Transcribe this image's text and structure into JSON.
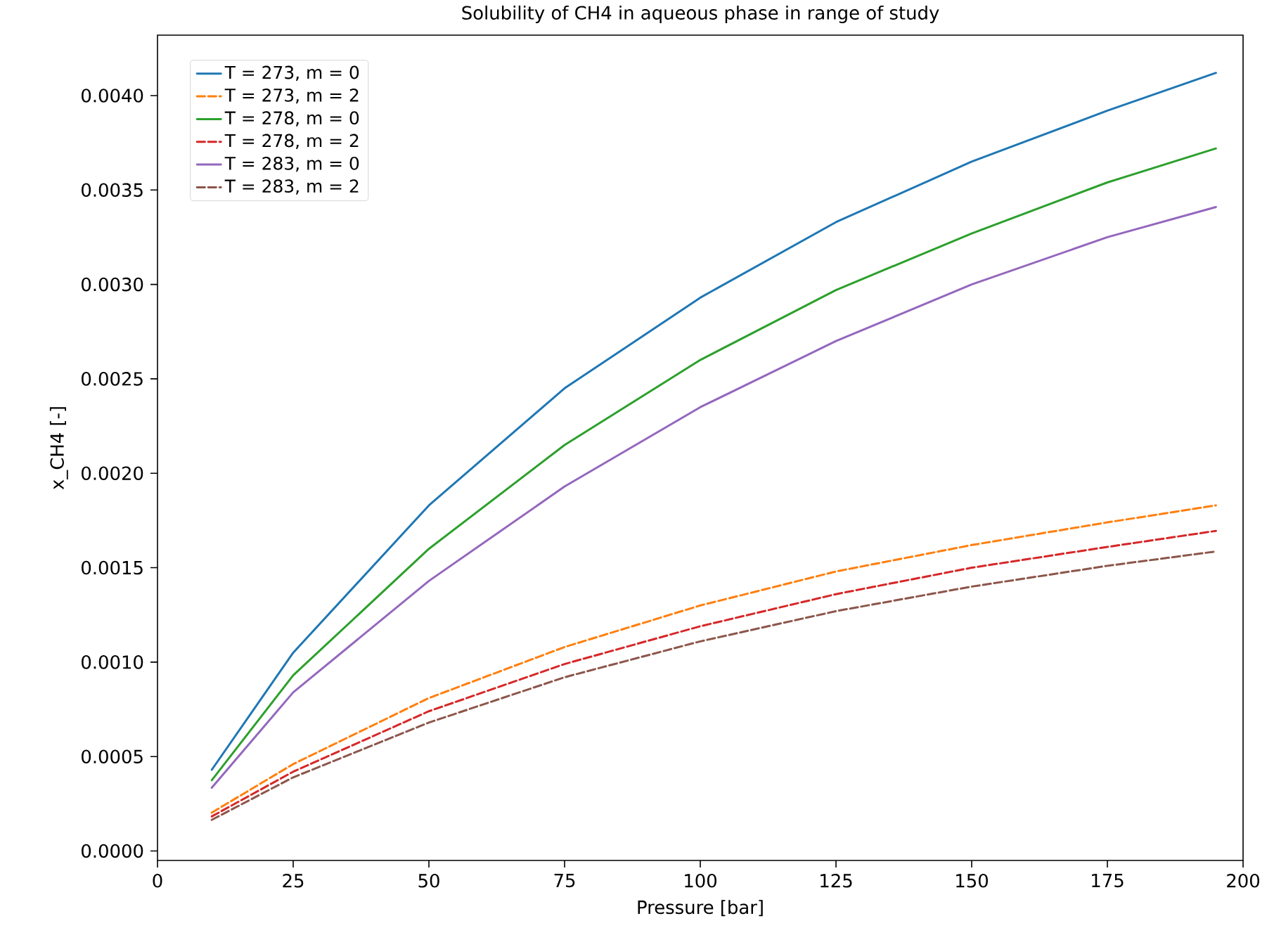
{
  "chart_data": {
    "type": "line",
    "title": "Solubility of CH4 in aqueous phase in range of study",
    "xlabel": "Pressure [bar]",
    "ylabel": "x_CH4 [-]",
    "x": [
      10,
      25,
      50,
      75,
      100,
      125,
      150,
      175,
      195
    ],
    "series": [
      {
        "name": "T = 273, m = 0",
        "color": "#1f77b4",
        "line_style": "solid",
        "values": [
          0.00043,
          0.00105,
          0.00183,
          0.00245,
          0.00293,
          0.00333,
          0.00365,
          0.00392,
          0.00412
        ]
      },
      {
        "name": "T = 273, m = 2",
        "color": "#ff7f0e",
        "line_style": "dashed",
        "values": [
          0.000203,
          0.00046,
          0.00081,
          0.00108,
          0.0013,
          0.00148,
          0.00162,
          0.00174,
          0.00183
        ]
      },
      {
        "name": "T = 278, m = 0",
        "color": "#2ca02c",
        "line_style": "solid",
        "values": [
          0.000375,
          0.00093,
          0.0016,
          0.00215,
          0.0026,
          0.00297,
          0.00327,
          0.00354,
          0.00372
        ]
      },
      {
        "name": "T = 278, m = 2",
        "color": "#d62728",
        "line_style": "dashed",
        "values": [
          0.000183,
          0.00042,
          0.00074,
          0.00099,
          0.00119,
          0.00136,
          0.0015,
          0.00161,
          0.001695
        ]
      },
      {
        "name": "T = 283, m = 0",
        "color": "#9467bd",
        "line_style": "solid",
        "values": [
          0.000335,
          0.00084,
          0.00143,
          0.00193,
          0.00235,
          0.0027,
          0.003,
          0.00325,
          0.00341
        ]
      },
      {
        "name": "T = 283, m = 2",
        "color": "#8c564b",
        "line_style": "dashed",
        "values": [
          0.000165,
          0.00039,
          0.00068,
          0.00092,
          0.00111,
          0.00127,
          0.0014,
          0.00151,
          0.001586
        ]
      }
    ],
    "xlim": [
      0,
      200
    ],
    "ylim": [
      -5e-05,
      0.00432
    ],
    "xticks": [
      0,
      25,
      50,
      75,
      100,
      125,
      150,
      175,
      200
    ],
    "yticks": [
      {
        "value": 0,
        "label": "0.0000"
      },
      {
        "value": 0.0005,
        "label": "0.0005"
      },
      {
        "value": 0.001,
        "label": "0.0010"
      },
      {
        "value": 0.0015,
        "label": "0.0015"
      },
      {
        "value": 0.002,
        "label": "0.0020"
      },
      {
        "value": 0.0025,
        "label": "0.0025"
      },
      {
        "value": 0.003,
        "label": "0.0030"
      },
      {
        "value": 0.0035,
        "label": "0.0035"
      },
      {
        "value": 0.004,
        "label": "0.0040"
      }
    ],
    "grid": false,
    "legend": "top left",
    "marker": "none"
  }
}
